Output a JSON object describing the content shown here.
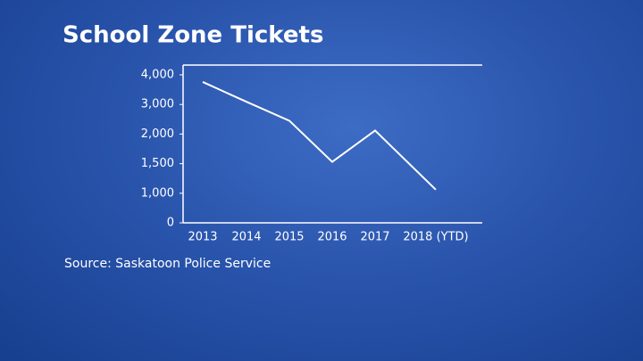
{
  "chart_data": {
    "type": "line",
    "title": "School Zone Tickets",
    "source": "Source: Saskatoon Police Service",
    "categories": [
      "2013",
      "2014",
      "2015",
      "2016",
      "2017",
      "2018 (YTD)"
    ],
    "values": [
      3760,
      3090,
      2450,
      1530,
      2120,
      1060
    ],
    "color": "#ffffff",
    "ylim": [
      0,
      4000
    ],
    "yticks": [
      0,
      {
        "value": 1000,
        "label": "1,000"
      },
      {
        "value": 1500,
        "label": "1,500"
      },
      {
        "value": 2000,
        "label": "2,000"
      },
      {
        "value": 3000,
        "label": "3,000"
      },
      {
        "value": 4000,
        "label": "4,000"
      }
    ]
  }
}
